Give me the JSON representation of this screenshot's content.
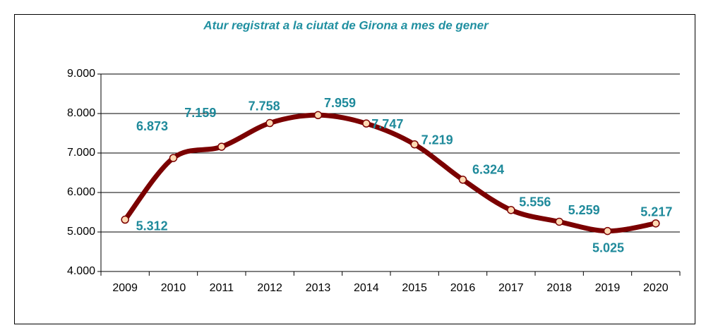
{
  "chart_data": {
    "type": "line",
    "title": "Atur registrat  a la ciutat de Girona a mes de gener",
    "categories": [
      "2009",
      "2010",
      "2011",
      "2012",
      "2013",
      "2014",
      "2015",
      "2016",
      "2017",
      "2018",
      "2019",
      "2020"
    ],
    "series": [
      {
        "name": "Atur registrat",
        "color": "#7b0000",
        "marker_color": "#ffd9b3",
        "values": [
          5312,
          6873,
          7159,
          7758,
          7959,
          7747,
          7219,
          6324,
          5556,
          5259,
          5025,
          5217
        ],
        "value_labels": [
          "5.312",
          "6.873",
          "7.159",
          "7.758",
          "7.959",
          "7.747",
          "7.219",
          "6.324",
          "5.556",
          "5.259",
          "5.025",
          "5.217"
        ]
      }
    ],
    "ylim": [
      4000,
      9000
    ],
    "yticks": [
      {
        "value": 4000,
        "label": "4.000"
      },
      {
        "value": 5000,
        "label": "5.000"
      },
      {
        "value": 6000,
        "label": "6.000"
      },
      {
        "value": 7000,
        "label": "7.000"
      },
      {
        "value": 8000,
        "label": "8.000"
      },
      {
        "value": 9000,
        "label": "9.000"
      }
    ],
    "grid": true
  }
}
